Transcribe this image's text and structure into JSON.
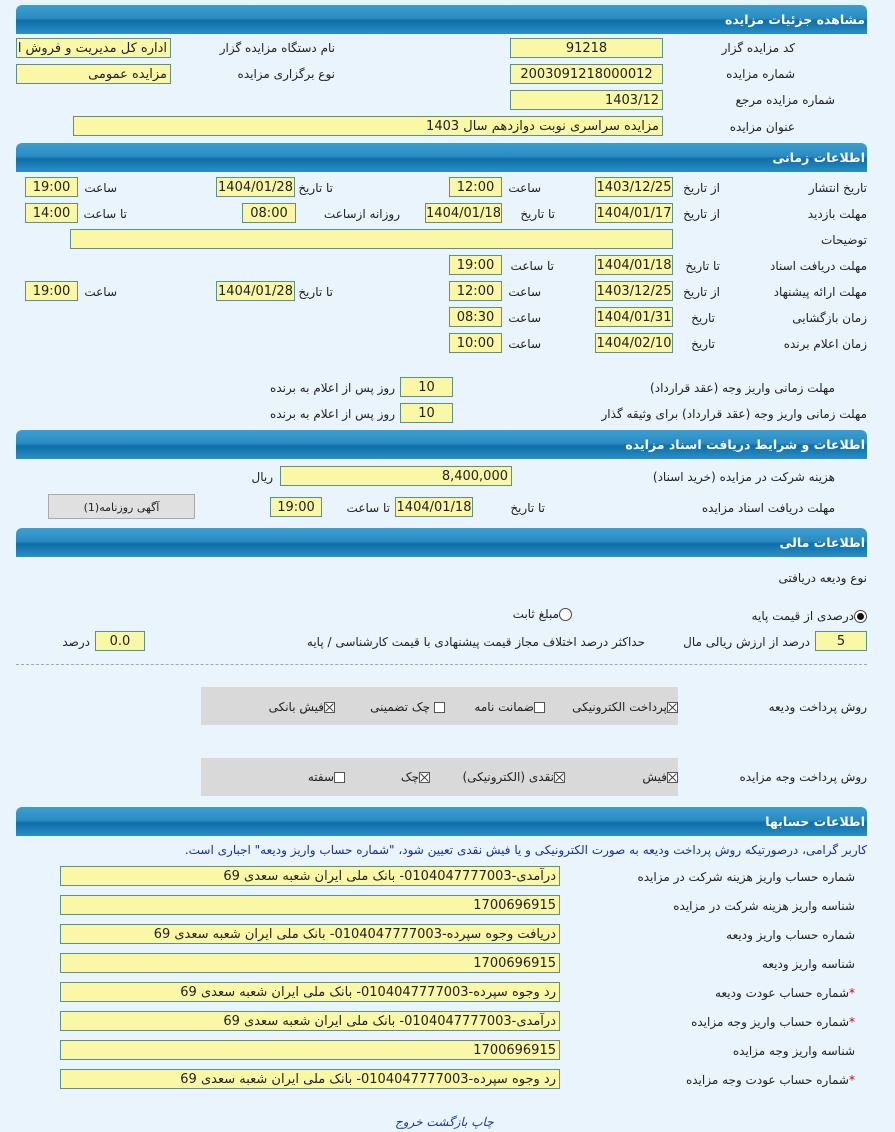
{
  "sections": {
    "details": "مشاهده جزئیات مزایده",
    "time": "اطلاعات زمانی",
    "docs": "اطلاعات و شرایط دریافت اسناد مزایده",
    "finance": "اطلاعات مالی",
    "accounts": "اطلاعات حسابها"
  },
  "details": {
    "code_label": "کد مزایده گزار",
    "code": "91218",
    "org_label": "نام دستگاه مزایده گزار",
    "org": "اداره کل مدیریت و فروش اموال",
    "number_label": "شماره مزایده",
    "number": "2003091218000012",
    "type_label": "نوع برگزاری مزایده",
    "type": "مزایده عمومی",
    "ref_label": "شماره مزایده مرجع",
    "ref": "1403/12",
    "title_label": "عنوان مزایده",
    "title": "مزایده سراسری نوبت دوازدهم سال 1403"
  },
  "time": {
    "publish": {
      "label": "تاریخ انتشار",
      "from_label": "از تاریخ",
      "from": "1403/12/25",
      "time_label": "ساعت",
      "time": "12:00",
      "to_label": "تا تاریخ",
      "to": "1404/01/28",
      "time2_label": "ساعت",
      "time2": "19:00"
    },
    "visit": {
      "label": "مهلت بازدید",
      "from_label": "از تاریخ",
      "from": "1404/01/17",
      "to_label": "تا تاریخ",
      "to": "1404/01/18",
      "daily_label": "روزانه ازساعت",
      "daily_from": "08:00",
      "to_time_label": "تا ساعت",
      "to_time": "14:00"
    },
    "desc_label": "توضیحات",
    "desc": "",
    "docs_deadline": {
      "label": "مهلت دریافت اسناد",
      "to_label": "تا تاریخ",
      "to": "1404/01/18",
      "time_label": "تا ساعت",
      "time": "19:00"
    },
    "offer": {
      "label": "مهلت ارائه پیشنهاد",
      "from_label": "از تاریخ",
      "from": "1403/12/25",
      "time_label": "ساعت",
      "time": "12:00",
      "to_label": "تا تاریخ",
      "to": "1404/01/28",
      "time2_label": "ساعت",
      "time2": "19:00"
    },
    "opening": {
      "label": "زمان بازگشایی",
      "date_label": "تاریخ",
      "date": "1404/01/31",
      "time_label": "ساعت",
      "time": "08:30"
    },
    "winner": {
      "label": "زمان اعلام برنده",
      "date_label": "تاریخ",
      "date": "1404/02/10",
      "time_label": "ساعت",
      "time": "10:00"
    },
    "pay_deadline_label": "مهلت زمانی واریز وجه (عقد قرارداد)",
    "pay_deadline": "10",
    "pay_deadline_unit": "روز پس از اعلام به برنده",
    "pay_deadline2_label": "مهلت زمانی واریز وجه (عقد قرارداد) برای وثیقه گذار",
    "pay_deadline2": "10",
    "pay_deadline2_unit": "روز پس از اعلام به برنده"
  },
  "docs": {
    "fee_label": "هزینه شرکت در مزایده (خرید اسناد)",
    "fee": "8,400,000",
    "fee_unit": "ریال",
    "deadline_label": "مهلت دریافت اسناد مزایده",
    "to_label": "تا تاریخ",
    "to": "1404/01/18",
    "time_label": "تا ساعت",
    "time": "19:00",
    "newspaper_button": "آگهی روزنامه(1)"
  },
  "finance": {
    "deposit_type_label": "نوع ودیعه دریافتی",
    "radio_percent": "درصدی از قیمت پایه",
    "radio_fixed": "مبلغ ثابت",
    "percent": "5",
    "percent_label": "درصد از ارزش ریالی مال",
    "max_diff_label": "حداکثر درصد اختلاف مجاز قیمت پیشنهادی با قیمت کارشناسی / پایه",
    "max_diff": "0.0",
    "max_diff_unit": "درصد",
    "deposit_method_label": "روش پرداخت ودیعه",
    "deposit_methods": [
      {
        "label": "پرداخت الکترونیکی",
        "checked": true
      },
      {
        "label": "ضمانت نامه",
        "checked": false
      },
      {
        "label": "چک تضمینی",
        "checked": false
      },
      {
        "label": "فیش بانکی",
        "checked": true
      }
    ],
    "payment_method_label": "روش پرداخت وجه مزایده",
    "payment_methods": [
      {
        "label": "فیش",
        "checked": true
      },
      {
        "label": "نقدی (الکترونیکی)",
        "checked": true
      },
      {
        "label": "چک",
        "checked": true
      },
      {
        "label": "سفته",
        "checked": false
      }
    ]
  },
  "accounts": {
    "note": "کاربر گرامی، درصورتیکه روش پرداخت ودیعه به صورت الکترونیکی و یا فیش نقدی تعیین شود، \"شماره حساب واریز ودیعه\" اجباری است.",
    "rows": [
      {
        "label": "شماره حساب واریز هزینه شرکت در مزایده",
        "value": "درآمدی-0104047777003- بانک ملی ایران شعبه سعدی 69",
        "required": false
      },
      {
        "label": "شناسه واریز هزینه شرکت در مزایده",
        "value": "1700696915",
        "required": false
      },
      {
        "label": "شماره حساب واریز ودیعه",
        "value": "دریافت وجوه سپرده-0104047777003- بانک ملی ایران شعبه سعدی 69",
        "required": false
      },
      {
        "label": "شناسه واریز ودیعه",
        "value": "1700696915",
        "required": false
      },
      {
        "label": "شماره حساب عودت ودیعه",
        "value": "رد وجوه سپرده-0104047777003- بانک ملی ایران شعبه سعدی 69",
        "required": true
      },
      {
        "label": "شماره حساب واریز وجه مزایده",
        "value": "درآمدی-0104047777003- بانک ملی ایران شعبه سعدی 69",
        "required": true
      },
      {
        "label": "شناسه واریز وجه مزایده",
        "value": "1700696915",
        "required": false
      },
      {
        "label": "شماره حساب عودت وجه مزایده",
        "value": "رد وجوه سپرده-0104047777003- بانک ملی ایران شعبه سعدی 69",
        "required": true
      }
    ]
  },
  "footer": {
    "print": "چاپ",
    "back": "بازگشت",
    "exit": "خروج"
  },
  "colors": {
    "header": "#1f7fb8",
    "field": "#faf8a6",
    "background": "#e9f4fc"
  }
}
